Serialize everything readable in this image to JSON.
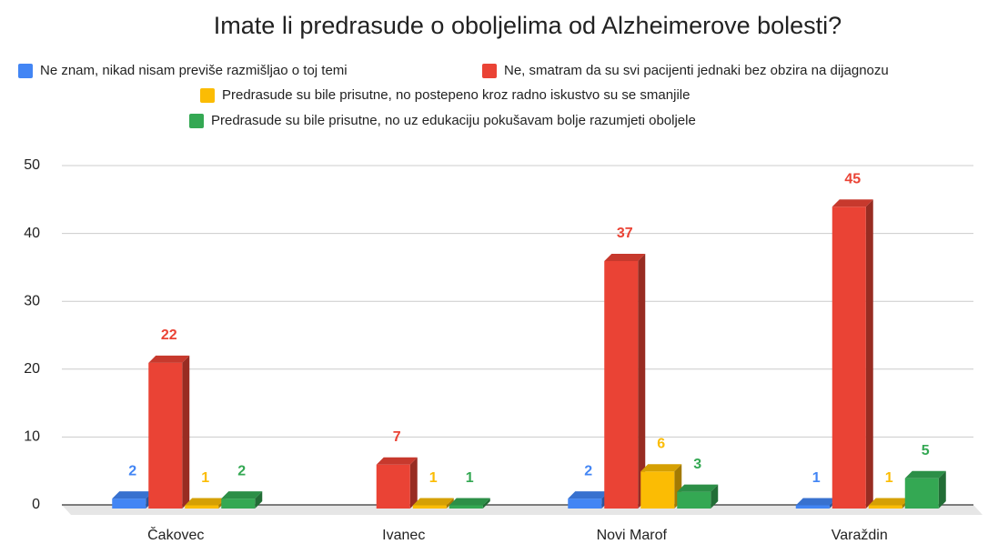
{
  "chart_data": {
    "type": "bar3d",
    "title": "Imate li predrasude o oboljelima od Alzheimerove bolesti?",
    "categories": [
      "Čakovec",
      "Ivanec",
      "Novi Marof",
      "Varaždin"
    ],
    "series": [
      {
        "name": "Ne znam, nikad nisam previše razmišljao o toj temi",
        "color": "#4285f4",
        "values": [
          2,
          null,
          2,
          1
        ]
      },
      {
        "name": "Ne, smatram da su svi pacijenti jednaki bez obzira na dijagnozu",
        "color": "#ea4335",
        "values": [
          22,
          7,
          37,
          45
        ]
      },
      {
        "name": "Predrasude su bile prisutne, no postepeno kroz radno iskustvo su se smanjile",
        "color": "#fbbc04",
        "values": [
          1,
          1,
          6,
          1
        ]
      },
      {
        "name": "Predrasude su bile prisutne, no uz edukaciju pokušavam bolje razumjeti oboljele",
        "color": "#34a853",
        "values": [
          2,
          1,
          3,
          5
        ]
      }
    ],
    "ylim": [
      0,
      50
    ],
    "yticks": [
      0,
      10,
      20,
      30,
      40,
      50
    ],
    "grid": true,
    "legend": "top"
  }
}
